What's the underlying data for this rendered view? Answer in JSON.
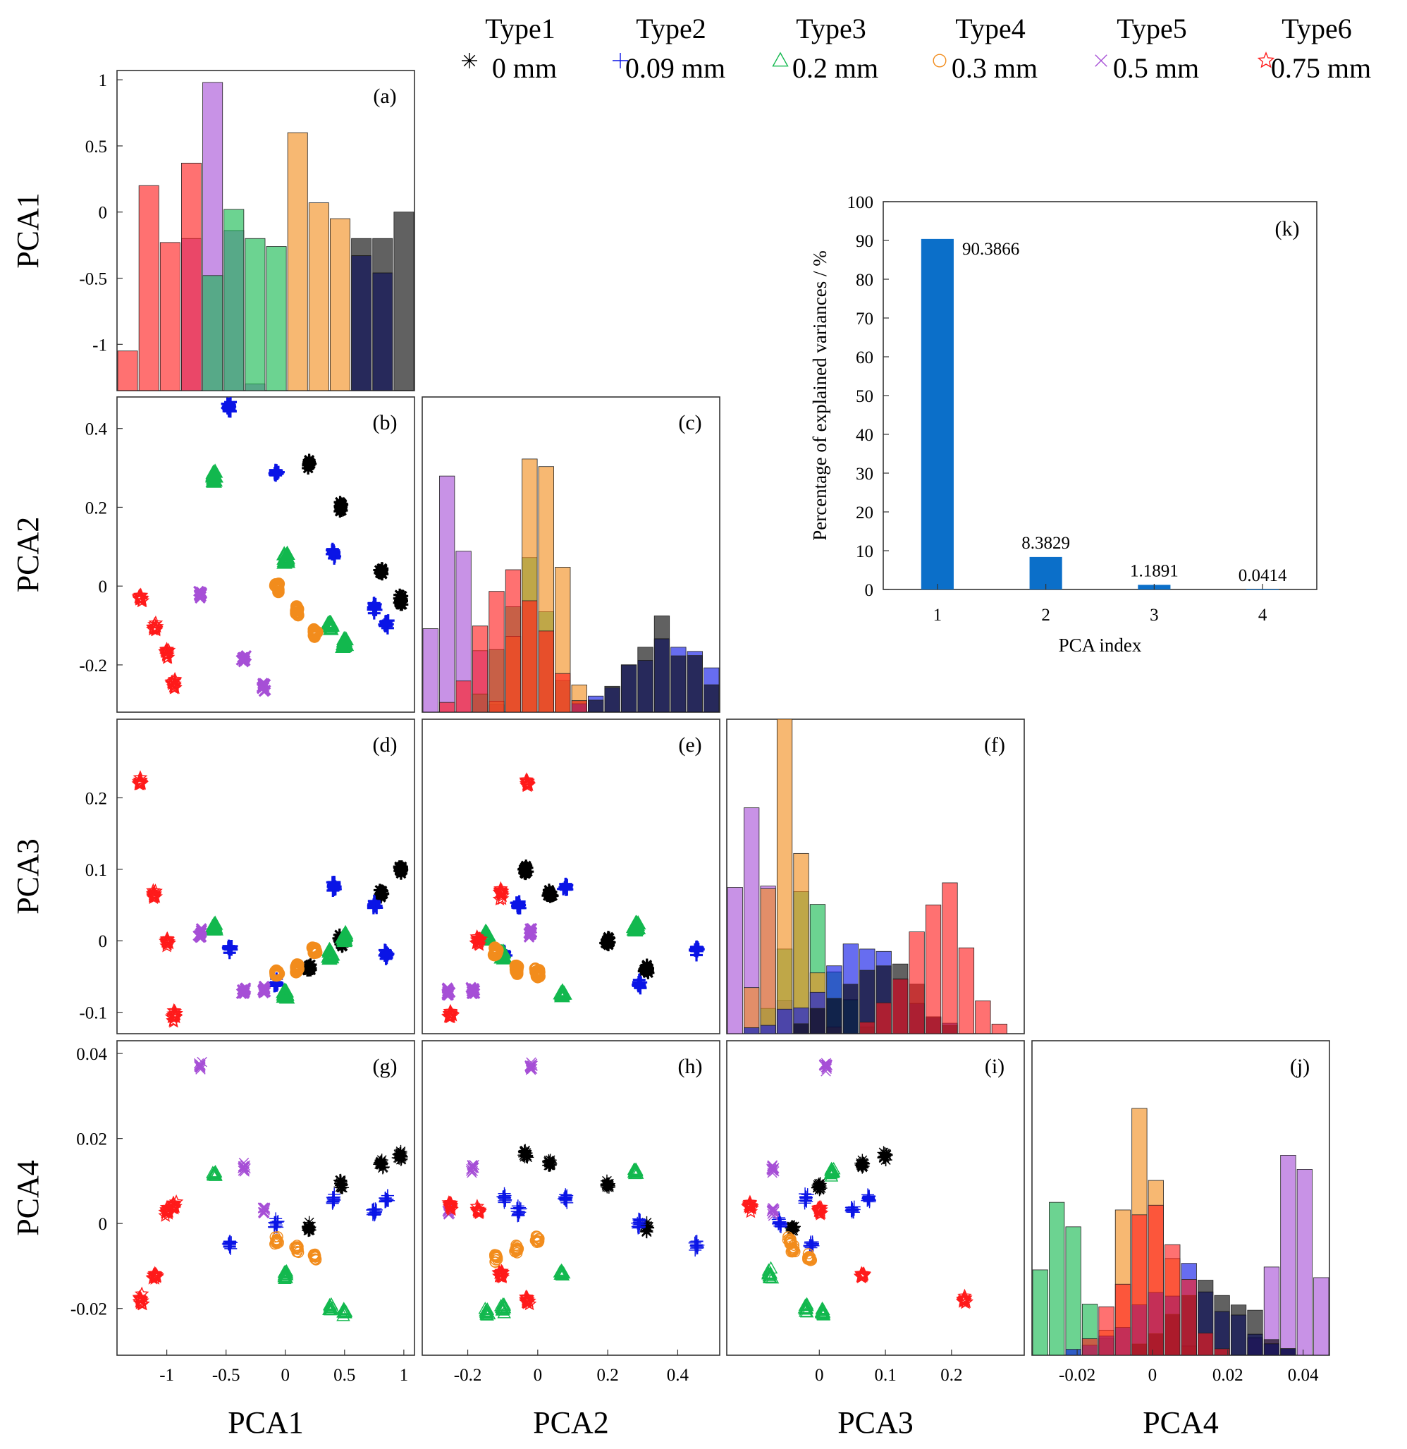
{
  "legend": [
    {
      "type": "Type1",
      "size": "0 mm",
      "color": "#000000",
      "marker": "asterisk"
    },
    {
      "type": "Type2",
      "size": "0.09 mm",
      "color": "#0a14e6",
      "marker": "plus"
    },
    {
      "type": "Type3",
      "size": "0.2 mm",
      "color": "#12b84e",
      "marker": "triangle"
    },
    {
      "type": "Type4",
      "size": "0.3 mm",
      "color": "#f28c1c",
      "marker": "circle"
    },
    {
      "type": "Type5",
      "size": "0.5 mm",
      "color": "#a64fd6",
      "marker": "cross"
    },
    {
      "type": "Type6",
      "size": "0.75 mm",
      "color": "#ff1a1a",
      "marker": "star"
    }
  ],
  "axis_labels": {
    "pca1": "PCA1",
    "pca2": "PCA2",
    "pca3": "PCA3",
    "pca4": "PCA4"
  },
  "panel_letters": [
    "(a)",
    "(b)",
    "(c)",
    "(d)",
    "(e)",
    "(f)",
    "(g)",
    "(h)",
    "(i)",
    "(j)",
    "(k)"
  ],
  "ticks": {
    "pca1_x": [
      "-1",
      "-0.5",
      "0",
      "0.5",
      "1"
    ],
    "pca2_x": [
      "-0.2",
      "0",
      "0.2",
      "0.4"
    ],
    "pca3_x": [
      "0",
      "0.1",
      "0.2"
    ],
    "pca4_x": [
      "-0.02",
      "0",
      "0.02",
      "0.04"
    ],
    "pca1_y": [
      "1",
      "0.5",
      "0",
      "-0.5",
      "-1"
    ],
    "pca2_y": [
      "0.4",
      "0.2",
      "0",
      "-0.2"
    ],
    "pca3_y": [
      "0.2",
      "0.1",
      "0",
      "-0.1"
    ],
    "pca4_y": [
      "0.04",
      "0.02",
      "0",
      "-0.02"
    ]
  },
  "chart_data": [
    {
      "type": "bar",
      "panel": "(k)",
      "title": "",
      "categories": [
        "1",
        "2",
        "3",
        "4"
      ],
      "values": [
        90.3866,
        8.3829,
        1.1891,
        0.0414
      ],
      "value_labels": [
        "90.3866",
        "8.3829",
        "1.1891",
        "0.0414"
      ],
      "xlabel": "PCA index",
      "ylabel": "Percentage of explained variances / %",
      "ylim": [
        0,
        100
      ],
      "yticks": [
        "0",
        "10",
        "20",
        "30",
        "40",
        "50",
        "60",
        "70",
        "80",
        "90",
        "100"
      ],
      "color": "#0b6fc9"
    },
    {
      "type": "scatter",
      "panels": [
        "(b)",
        "(d)",
        "(e)",
        "(g)",
        "(h)",
        "(i)"
      ],
      "description": "Pairwise PCA scores per type (cluster centers)",
      "dims": [
        "PCA1",
        "PCA2",
        "PCA3",
        "PCA4"
      ],
      "series": [
        {
          "name": "Type1",
          "clusters": [
            [
              0.2,
              0.31,
              -0.04,
              -0.001
            ],
            [
              0.47,
              0.2,
              0.0,
              0.009
            ],
            [
              0.81,
              0.035,
              0.065,
              0.014
            ],
            [
              0.97,
              -0.035,
              0.1,
              0.016
            ]
          ]
        },
        {
          "name": "Type2",
          "clusters": [
            [
              -0.47,
              0.455,
              -0.012,
              -0.005
            ],
            [
              -0.08,
              0.29,
              -0.06,
              0.0
            ],
            [
              0.41,
              0.08,
              0.075,
              0.006
            ],
            [
              0.75,
              -0.055,
              0.05,
              0.003
            ],
            [
              0.85,
              -0.095,
              -0.02,
              0.006
            ]
          ]
        },
        {
          "name": "Type3",
          "clusters": [
            [
              -0.6,
              0.28,
              0.02,
              0.012
            ],
            [
              0.0,
              0.07,
              -0.075,
              -0.012
            ],
            [
              0.38,
              -0.1,
              -0.02,
              -0.02
            ],
            [
              0.5,
              -0.145,
              0.005,
              -0.021
            ]
          ]
        },
        {
          "name": "Type4",
          "clusters": [
            [
              -0.07,
              0.0,
              -0.045,
              -0.004
            ],
            [
              0.1,
              -0.06,
              -0.04,
              -0.006
            ],
            [
              0.25,
              -0.12,
              -0.015,
              -0.008
            ]
          ]
        },
        {
          "name": "Type5",
          "clusters": [
            [
              -0.72,
              -0.02,
              0.01,
              0.037
            ],
            [
              -0.35,
              -0.185,
              -0.07,
              0.013
            ],
            [
              -0.18,
              -0.255,
              -0.07,
              0.003
            ]
          ]
        },
        {
          "name": "Type6",
          "clusters": [
            [
              -1.22,
              -0.03,
              0.22,
              -0.018
            ],
            [
              -1.0,
              -0.17,
              0.0,
              0.003
            ],
            [
              -1.1,
              -0.105,
              0.065,
              -0.012
            ],
            [
              -0.94,
              -0.25,
              -0.105,
              0.004
            ]
          ]
        }
      ]
    },
    {
      "type": "bar",
      "panels": [
        "(a)",
        "(c)",
        "(f)",
        "(j)"
      ],
      "description": "Overlaid per-type histograms of each PCA component"
    }
  ]
}
